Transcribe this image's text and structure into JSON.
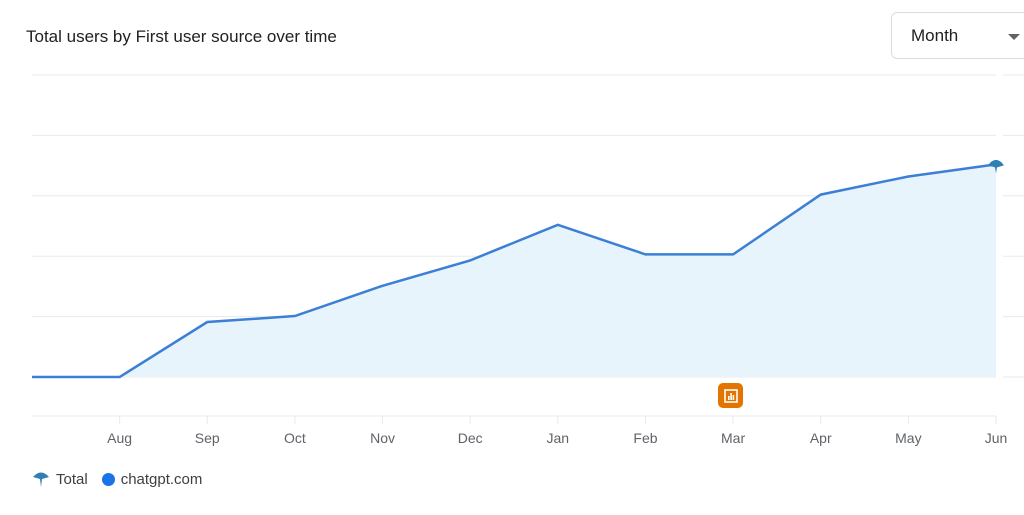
{
  "header": {
    "title": "Total users by First user source over time",
    "period_select": "Month"
  },
  "colors": {
    "line": "#3b7fd6",
    "fill": "#e8f4fc",
    "grid": "#e8eaed",
    "total_marker": "#2f7fb5",
    "chatgpt": "#1a73e8",
    "annotation": "#e37400"
  },
  "chart_data": {
    "type": "area",
    "title": "Total users by First user source over time",
    "categories": [
      "",
      "Aug",
      "Sep",
      "Oct",
      "Nov",
      "Dec",
      "Jan",
      "Feb",
      "Mar",
      "Apr",
      "May",
      "Jun"
    ],
    "series": [
      {
        "name": "chatgpt.com",
        "values": [
          0,
          0,
          0.91,
          1.01,
          1.51,
          1.93,
          2.52,
          2.03,
          2.03,
          3.02,
          3.32,
          3.52
        ]
      }
    ],
    "ylim": [
      0,
      5
    ],
    "grid": true,
    "legend": {
      "placement": "bottom-left",
      "entries": [
        "Total",
        "chatgpt.com"
      ]
    },
    "annotation": {
      "category": "Mar",
      "icon": "annotation-chart-icon"
    }
  }
}
